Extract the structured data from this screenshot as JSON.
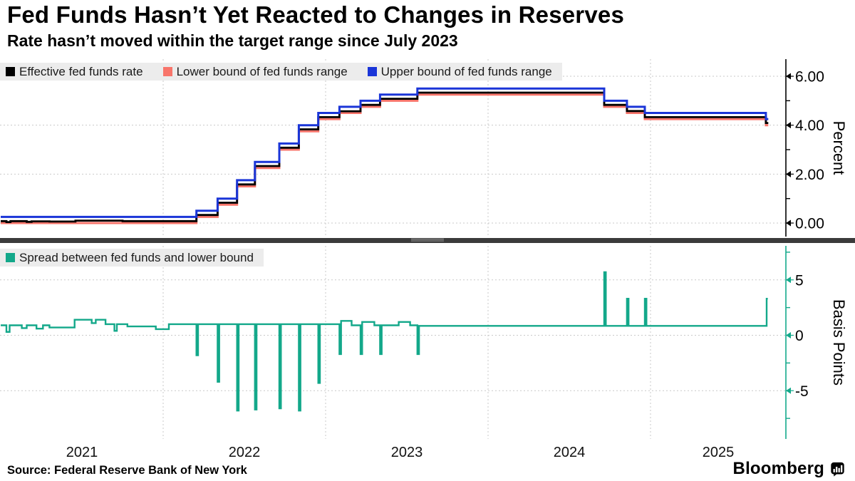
{
  "header": {
    "title": "Fed Funds Hasn’t Yet Reacted to Changes in Reserves",
    "subtitle": "Rate hasn’t moved within the target range since July 2023"
  },
  "source": "Source: Federal Reserve Bank of New York",
  "brand": {
    "name": "Bloomberg"
  },
  "colors": {
    "effective": "#000000",
    "lower_bound": "#f8756b",
    "upper_bound": "#1a35d8",
    "spread": "#13a88a",
    "divider": "#3b3b3b",
    "legend_bg": "#ececec",
    "gridline": "#c9c9c9"
  },
  "top_panel": {
    "axis": {
      "title": "Percent",
      "ticks": [
        {
          "value": 6,
          "label": "6.00"
        },
        {
          "value": 4,
          "label": "4.00"
        },
        {
          "value": 2,
          "label": "2.00"
        },
        {
          "value": 0,
          "label": "0.00"
        }
      ],
      "minor_ticks": [
        5,
        3,
        1
      ],
      "color": "#000000"
    }
  },
  "bottom_panel": {
    "axis": {
      "title": "Basis Points",
      "ticks": [
        {
          "value": 5,
          "label": "5"
        },
        {
          "value": 0,
          "label": "0"
        },
        {
          "value": -5,
          "label": "-5"
        }
      ],
      "minor_ticks": [
        7.5,
        2.5,
        -2.5,
        -7.5
      ],
      "color": "#13a88a"
    }
  },
  "x_axis": {
    "years": [
      2021,
      2022,
      2023,
      2024,
      2025
    ],
    "gridline_years": [
      2022,
      2023,
      2024,
      2025
    ],
    "xlim": [
      2021.0,
      2025.834
    ]
  },
  "chart_data": [
    {
      "type": "line",
      "step": true,
      "x_unit": "decimal_year",
      "ylabel": "Percent",
      "yticks": [
        0,
        2,
        4,
        6
      ],
      "ylim": [
        -0.55,
        6.7
      ],
      "end": 2025.725,
      "series": [
        {
          "name": "Lower bound of fed funds range",
          "color": "#f8756b",
          "width": 3,
          "points": [
            [
              2021.0,
              0.0
            ],
            [
              2022.205,
              0.25
            ],
            [
              2022.335,
              0.75
            ],
            [
              2022.455,
              1.5
            ],
            [
              2022.565,
              2.25
            ],
            [
              2022.715,
              3.0
            ],
            [
              2022.835,
              3.75
            ],
            [
              2022.955,
              4.25
            ],
            [
              2023.085,
              4.5
            ],
            [
              2023.215,
              4.75
            ],
            [
              2023.335,
              5.0
            ],
            [
              2023.565,
              5.25
            ],
            [
              2024.715,
              4.75
            ],
            [
              2024.855,
              4.5
            ],
            [
              2024.965,
              4.25
            ],
            [
              2025.71,
              4.0
            ]
          ]
        },
        {
          "name": "Effective fed funds rate",
          "color": "#000000",
          "width": 2.8,
          "points": [
            [
              2021.0,
              0.08
            ],
            [
              2021.035,
              0.04
            ],
            [
              2021.06,
              0.08
            ],
            [
              2021.16,
              0.05
            ],
            [
              2021.19,
              0.07
            ],
            [
              2021.3,
              0.06
            ],
            [
              2021.46,
              0.1
            ],
            [
              2021.75,
              0.08
            ],
            [
              2022.205,
              0.33
            ],
            [
              2022.335,
              0.83
            ],
            [
              2022.455,
              1.58
            ],
            [
              2022.565,
              2.33
            ],
            [
              2022.715,
              3.08
            ],
            [
              2022.835,
              3.83
            ],
            [
              2022.955,
              4.33
            ],
            [
              2023.085,
              4.57
            ],
            [
              2023.215,
              4.83
            ],
            [
              2023.335,
              5.08
            ],
            [
              2023.565,
              5.33
            ],
            [
              2024.715,
              4.83
            ],
            [
              2024.855,
              4.58
            ],
            [
              2024.965,
              4.33
            ],
            [
              2025.71,
              4.09
            ]
          ]
        },
        {
          "name": "Upper bound of fed funds range",
          "color": "#1a35d8",
          "width": 3,
          "points": [
            [
              2021.0,
              0.25
            ],
            [
              2022.205,
              0.5
            ],
            [
              2022.335,
              1.0
            ],
            [
              2022.455,
              1.75
            ],
            [
              2022.565,
              2.5
            ],
            [
              2022.715,
              3.25
            ],
            [
              2022.835,
              4.0
            ],
            [
              2022.955,
              4.5
            ],
            [
              2023.085,
              4.75
            ],
            [
              2023.215,
              5.0
            ],
            [
              2023.335,
              5.25
            ],
            [
              2023.565,
              5.5
            ],
            [
              2024.715,
              5.0
            ],
            [
              2024.855,
              4.75
            ],
            [
              2024.965,
              4.5
            ],
            [
              2025.71,
              4.25
            ]
          ]
        }
      ]
    },
    {
      "type": "line",
      "step": true,
      "x_unit": "decimal_year",
      "ylabel": "Basis Points",
      "yticks": [
        -5,
        0,
        5
      ],
      "ylim": [
        -9.4,
        8.1
      ],
      "end": 2025.722,
      "series": [
        {
          "name": "Spread between fed funds and lower bound",
          "color": "#13a88a",
          "width": 2.4,
          "points": [
            [
              2021.0,
              0.9
            ],
            [
              2021.035,
              0.3
            ],
            [
              2021.055,
              0.9
            ],
            [
              2021.13,
              0.65
            ],
            [
              2021.16,
              0.9
            ],
            [
              2021.22,
              0.6
            ],
            [
              2021.26,
              0.9
            ],
            [
              2021.3,
              0.7
            ],
            [
              2021.455,
              1.4
            ],
            [
              2021.56,
              1.1
            ],
            [
              2021.585,
              1.4
            ],
            [
              2021.645,
              1.0
            ],
            [
              2021.7,
              0.4
            ],
            [
              2021.715,
              1.0
            ],
            [
              2021.78,
              0.8
            ],
            [
              2021.955,
              0.55
            ],
            [
              2022.035,
              1.0
            ],
            [
              2022.205,
              -1.8
            ],
            [
              2022.215,
              1.0
            ],
            [
              2022.335,
              -4.2
            ],
            [
              2022.345,
              1.0
            ],
            [
              2022.455,
              -6.8
            ],
            [
              2022.465,
              1.0
            ],
            [
              2022.565,
              -6.7
            ],
            [
              2022.575,
              1.0
            ],
            [
              2022.715,
              -6.6
            ],
            [
              2022.725,
              1.0
            ],
            [
              2022.835,
              -6.8
            ],
            [
              2022.845,
              1.0
            ],
            [
              2022.955,
              -4.3
            ],
            [
              2022.965,
              1.0
            ],
            [
              2023.085,
              -1.7
            ],
            [
              2023.095,
              1.3
            ],
            [
              2023.16,
              0.9
            ],
            [
              2023.215,
              -1.7
            ],
            [
              2023.225,
              1.2
            ],
            [
              2023.3,
              0.9
            ],
            [
              2023.335,
              -1.7
            ],
            [
              2023.345,
              0.9
            ],
            [
              2023.45,
              1.2
            ],
            [
              2023.52,
              0.9
            ],
            [
              2023.565,
              -1.7
            ],
            [
              2023.575,
              0.85
            ],
            [
              2024.715,
              5.7
            ],
            [
              2024.725,
              0.85
            ],
            [
              2024.855,
              3.3
            ],
            [
              2024.865,
              0.85
            ],
            [
              2024.965,
              3.3
            ],
            [
              2024.975,
              0.85
            ],
            [
              2025.715,
              3.3
            ]
          ]
        }
      ]
    }
  ]
}
